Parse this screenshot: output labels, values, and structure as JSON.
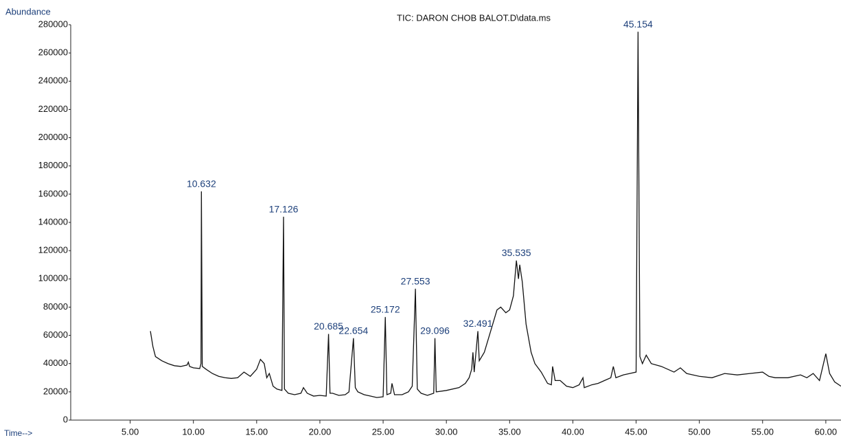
{
  "chart_data": {
    "type": "line",
    "title": "TIC: DARON CHOB BALOT.D\\data.ms",
    "y_label": "Abundance",
    "x_label": "Time-->",
    "xlim": [
      0.3,
      61.2
    ],
    "ylim": [
      0,
      280000
    ],
    "xticks": [
      {
        "value": 5,
        "label": "5.00"
      },
      {
        "value": 10,
        "label": "10.00"
      },
      {
        "value": 15,
        "label": "15.00"
      },
      {
        "value": 20,
        "label": "20.00"
      },
      {
        "value": 25,
        "label": "25.00"
      },
      {
        "value": 30,
        "label": "30.00"
      },
      {
        "value": 35,
        "label": "35.00"
      },
      {
        "value": 40,
        "label": "40.00"
      },
      {
        "value": 45,
        "label": "45.00"
      },
      {
        "value": 50,
        "label": "50.00"
      },
      {
        "value": 55,
        "label": "55.00"
      },
      {
        "value": 60,
        "label": "60.00"
      }
    ],
    "yticks": [
      0,
      20000,
      40000,
      60000,
      80000,
      100000,
      120000,
      140000,
      160000,
      180000,
      200000,
      220000,
      240000,
      260000,
      280000
    ],
    "color": "#111111",
    "x": [
      6.6,
      6.8,
      7.0,
      7.5,
      8,
      8.5,
      9,
      9.5,
      9.6,
      9.7,
      10,
      10.5,
      10.6,
      10.632,
      10.7,
      11,
      11.5,
      12,
      12.5,
      13,
      13.5,
      14,
      14.5,
      15,
      15.3,
      15.6,
      15.8,
      16,
      16.3,
      16.6,
      17,
      17.126,
      17.2,
      17.5,
      18,
      18.5,
      18.7,
      19,
      19.5,
      20,
      20.5,
      20.685,
      20.8,
      21,
      21.5,
      22,
      22.3,
      22.654,
      22.8,
      23,
      23.5,
      24,
      24.5,
      25,
      25.172,
      25.3,
      25.6,
      25.7,
      25.9,
      26.5,
      27,
      27.3,
      27.553,
      27.7,
      28,
      28.5,
      29,
      29.096,
      29.2,
      30,
      31,
      31.5,
      31.8,
      32,
      32.1,
      32.2,
      32.491,
      32.6,
      33,
      33.5,
      34,
      34.3,
      34.7,
      35,
      35.3,
      35.535,
      35.7,
      35.8,
      36,
      36.3,
      36.7,
      37,
      37.5,
      38,
      38.3,
      38.4,
      38.6,
      39,
      39.5,
      40,
      40.5,
      40.8,
      40.9,
      41.5,
      42,
      42.5,
      43,
      43.2,
      43.4,
      44,
      44.5,
      45,
      45.154,
      45.3,
      45.5,
      45.8,
      46.2,
      47,
      48,
      48.5,
      49,
      50,
      51,
      52,
      53,
      54,
      55,
      55.5,
      56,
      57,
      58,
      58.5,
      59,
      59.5,
      60,
      60.3,
      60.7,
      61.2
    ],
    "values": [
      63000,
      52000,
      45000,
      42000,
      40000,
      38500,
      38000,
      39000,
      41000,
      38000,
      37000,
      36500,
      40000,
      162000,
      38000,
      36000,
      33000,
      31000,
      30000,
      29500,
      30000,
      34000,
      31000,
      36000,
      43000,
      40000,
      30000,
      33000,
      24000,
      22000,
      21000,
      144000,
      22000,
      19000,
      18000,
      19000,
      23000,
      19000,
      17000,
      17500,
      17000,
      61000,
      19000,
      19000,
      17500,
      18000,
      20000,
      58000,
      23000,
      20000,
      18000,
      17000,
      16000,
      16500,
      73000,
      18000,
      19000,
      26000,
      18000,
      18000,
      20000,
      24000,
      93000,
      22000,
      19000,
      17500,
      19000,
      58000,
      20000,
      21000,
      23000,
      26000,
      30000,
      36000,
      48000,
      34000,
      63000,
      42000,
      48000,
      63000,
      78000,
      80000,
      76000,
      78000,
      88000,
      113000,
      100000,
      110000,
      98000,
      68000,
      48000,
      40000,
      34000,
      26000,
      25000,
      38000,
      28000,
      28000,
      24000,
      23000,
      25000,
      30000,
      23000,
      25000,
      26000,
      28000,
      30000,
      38000,
      30000,
      32000,
      33000,
      34000,
      275000,
      45000,
      40000,
      46000,
      40000,
      38000,
      34000,
      37000,
      33000,
      31000,
      30000,
      33000,
      32000,
      33000,
      34000,
      31000,
      30000,
      30000,
      32000,
      30000,
      33000,
      28000,
      47000,
      33000,
      27000,
      24000
    ],
    "annotations": [
      {
        "text": "10.632",
        "x": 10.632
      },
      {
        "text": "17.126",
        "x": 17.126
      },
      {
        "text": "20.685",
        "x": 20.685
      },
      {
        "text": "22.654",
        "x": 22.654
      },
      {
        "text": "25.172",
        "x": 25.172
      },
      {
        "text": "27.553",
        "x": 27.553
      },
      {
        "text": "29.096",
        "x": 29.096
      },
      {
        "text": "32.491",
        "x": 32.491
      },
      {
        "text": "35.535",
        "x": 35.535
      },
      {
        "text": "45.154",
        "x": 45.154
      }
    ]
  }
}
